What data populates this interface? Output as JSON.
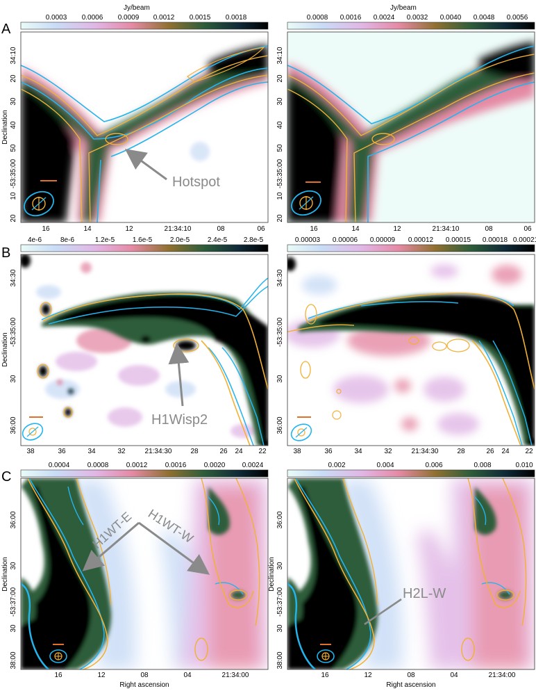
{
  "colorbar_unit": "Jy/beam",
  "panels": [
    {
      "row_label": "A",
      "left": {
        "colorbar_ticks": [
          "0.0003",
          "0.0006",
          "0.0009",
          "0.0012",
          "0.0015",
          "0.0018"
        ],
        "dec_ticks": [
          "34:10",
          "20",
          "30",
          "40",
          "50",
          "-53:35:00",
          "10",
          "20"
        ],
        "ra_ticks": [
          "16",
          "14",
          "12",
          "21:34:10",
          "08",
          "06"
        ],
        "annotation": "Hotspot"
      },
      "right": {
        "colorbar_ticks": [
          "0.0008",
          "0.0016",
          "0.0024",
          "0.0032",
          "0.0040",
          "0.0048",
          "0.0056"
        ],
        "dec_ticks": [
          "34:10",
          "20",
          "30",
          "40",
          "50",
          "-53:35:00",
          "10",
          "20"
        ],
        "ra_ticks": [
          "16",
          "14",
          "12",
          "21:34:10",
          "08",
          "06"
        ]
      }
    },
    {
      "row_label": "B",
      "left": {
        "colorbar_ticks": [
          "4e-6",
          "8e-6",
          "1.2e-5",
          "1.6e-5",
          "2.0e-5",
          "2.4e-5",
          "2.8e-5"
        ],
        "dec_ticks": [
          "34:30",
          "-53:35:00",
          "30",
          "36:00"
        ],
        "ra_ticks": [
          "38",
          "36",
          "34",
          "32",
          "21:34:30",
          "28",
          "26",
          "24",
          "22"
        ],
        "annotation": "H1Wisp2"
      },
      "right": {
        "colorbar_ticks": [
          "0.00003",
          "0.00006",
          "0.00009",
          "0.00012",
          "0.00015",
          "0.00018",
          "0.00021"
        ],
        "dec_ticks": [
          "34:30",
          "-53:35:00",
          "30",
          "36:00"
        ],
        "ra_ticks": [
          "38",
          "36",
          "34",
          "32",
          "21:34:30",
          "28",
          "26",
          "24",
          "22"
        ]
      }
    },
    {
      "row_label": "C",
      "left": {
        "colorbar_ticks": [
          "0.0004",
          "0.0008",
          "0.0012",
          "0.0016",
          "0.0020",
          "0.0024"
        ],
        "dec_ticks": [
          "36:00",
          "30",
          "-53:37:00",
          "30",
          "38:00"
        ],
        "ra_ticks": [
          "16",
          "12",
          "08",
          "04",
          "21:34:00"
        ],
        "annotations": [
          "H1WT-E",
          "H1WT-W"
        ]
      },
      "right": {
        "colorbar_ticks": [
          "0.002",
          "0.004",
          "0.006",
          "0.008",
          "0.010"
        ],
        "dec_ticks": [
          "36:00",
          "30",
          "-53:37:00",
          "30",
          "38:00"
        ],
        "ra_ticks": [
          "16",
          "12",
          "08",
          "04",
          "21:34:00"
        ],
        "annotation": "H2L-W"
      }
    }
  ],
  "axis_labels": {
    "declination": "Declination",
    "right_ascension": "Right ascension"
  },
  "colors": {
    "contour_cyan": "#23b4ee",
    "contour_orange": "#f2b035",
    "scale_bar": "#e0702a",
    "arrow_gray": "#8a8a8a",
    "colormap": [
      "#eafbf7",
      "#c8dcf6",
      "#e6b6e4",
      "#e58aa5",
      "#8f7030",
      "#2e5d3a",
      "#0f2a38",
      "#000000"
    ]
  },
  "icons": [
    "beam-ellipse-icon",
    "scale-bar-icon"
  ]
}
